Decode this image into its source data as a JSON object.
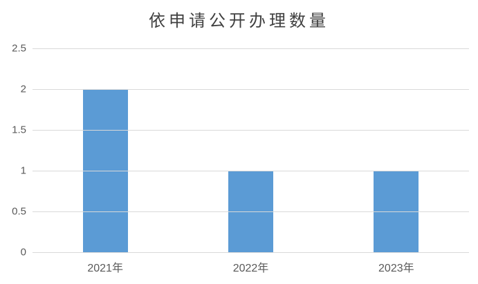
{
  "chart_data": {
    "type": "bar",
    "title": "依申请公开办理数量",
    "categories": [
      "2021年",
      "2022年",
      "2023年"
    ],
    "values": [
      2,
      1,
      1
    ],
    "xlabel": "",
    "ylabel": "",
    "ylim": [
      0,
      2.5
    ],
    "yticks": [
      0,
      0.5,
      1,
      1.5,
      2,
      2.5
    ],
    "ytick_labels": [
      "0",
      "0.5",
      "1",
      "1.5",
      "2",
      "2.5"
    ],
    "grid": "horizontal",
    "legend_position": "none",
    "colors": {
      "bar": "#5B9BD5",
      "gridline": "#D9D9D9",
      "title": "#404040",
      "tick_text": "#595959"
    }
  }
}
